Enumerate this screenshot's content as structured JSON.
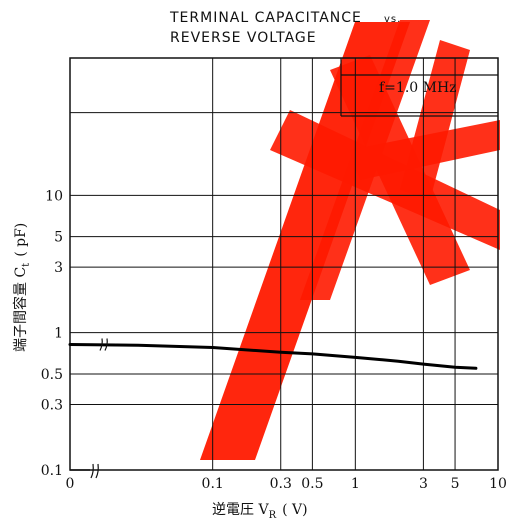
{
  "chart_data": {
    "type": "line",
    "title_line1": "TERMINAL CAPACITANCE",
    "title_vs": "vs.",
    "title_line2": "REVERSE VOLTAGE",
    "xlabel": "逆電圧 V",
    "xlabel_sub": "R",
    "xlabel_unit": "( V)",
    "ylabel": "端子間容量 C",
    "ylabel_sub": "t",
    "ylabel_unit": "( pF)",
    "annotation": "f=1.0 MHz",
    "x_scale": "log",
    "y_scale": "log",
    "xlim": [
      0.01,
      10
    ],
    "ylim": [
      0.1,
      100
    ],
    "grid": true,
    "axis_breaks": [
      "x",
      "y"
    ],
    "x_ticks": [
      {
        "label": "0",
        "value": 0.01
      },
      {
        "label": "0.1",
        "value": 0.1
      },
      {
        "label": "0.3",
        "value": 0.3
      },
      {
        "label": "0.5",
        "value": 0.5
      },
      {
        "label": "1",
        "value": 1
      },
      {
        "label": "3",
        "value": 3
      },
      {
        "label": "5",
        "value": 5
      },
      {
        "label": "10",
        "value": 10
      }
    ],
    "y_ticks": [
      {
        "label": "0.1",
        "value": 0.1
      },
      {
        "label": "0.3",
        "value": 0.3
      },
      {
        "label": "0.5",
        "value": 0.5
      },
      {
        "label": "1",
        "value": 1
      },
      {
        "label": "3",
        "value": 3
      },
      {
        "label": "5",
        "value": 5
      },
      {
        "label": "10",
        "value": 10
      }
    ],
    "y_grid_extra": [
      40
    ],
    "series": [
      {
        "color": "#000000",
        "x": [
          0.01,
          0.03,
          0.1,
          0.3,
          0.5,
          1,
          2,
          3,
          5,
          7
        ],
        "y": [
          0.82,
          0.81,
          0.78,
          0.72,
          0.7,
          0.66,
          0.62,
          0.59,
          0.56,
          0.55
        ]
      }
    ]
  },
  "watermark": {
    "text": "样",
    "color": "#ff1a00"
  }
}
